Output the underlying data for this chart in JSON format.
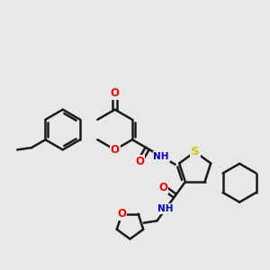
{
  "bg_color": "#e8e8e8",
  "bond_color": "#1a1a1a",
  "bond_width": 1.8,
  "atom_colors": {
    "O": "#ff0000",
    "N": "#0000cd",
    "S": "#cccc00",
    "C": "#1a1a1a"
  },
  "font_size": 8.5,
  "figsize": [
    3.0,
    3.0
  ],
  "dpi": 100
}
